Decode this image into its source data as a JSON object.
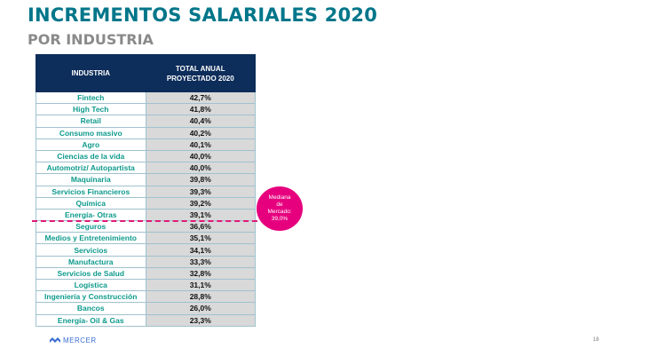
{
  "title": "INCREMENTOS SALARIALES 2020",
  "subtitle": "POR INDUSTRIA",
  "table": {
    "col_industry": "INDUSTRIA",
    "col_total_line1": "TOTAL ANUAL",
    "col_total_line2": "PROYECTADO 2020",
    "rows": [
      {
        "industry": "Fintech",
        "value": "42,7%"
      },
      {
        "industry": "High Tech",
        "value": "41,8%"
      },
      {
        "industry": "Retail",
        "value": "40,4%"
      },
      {
        "industry": "Consumo masivo",
        "value": "40,2%"
      },
      {
        "industry": "Agro",
        "value": "40,1%"
      },
      {
        "industry": "Ciencias de la vida",
        "value": "40,0%"
      },
      {
        "industry": "Automotriz/ Autopartista",
        "value": "40,0%"
      },
      {
        "industry": "Maquinaria",
        "value": "39,8%"
      },
      {
        "industry": "Servicios Financieros",
        "value": "39,3%"
      },
      {
        "industry": "Química",
        "value": "39,2%"
      },
      {
        "industry": "Energía- Otras",
        "value": "39,1%"
      },
      {
        "industry": "Seguros",
        "value": "36,6%"
      },
      {
        "industry": "Medios y Entretenimiento",
        "value": "35,1%"
      },
      {
        "industry": "Servicios",
        "value": "34,1%"
      },
      {
        "industry": "Manufactura",
        "value": "33,3%"
      },
      {
        "industry": "Servicios de Salud",
        "value": "32,8%"
      },
      {
        "industry": "Logística",
        "value": "31,1%"
      },
      {
        "industry": "Ingeniería y Construcción",
        "value": "28,8%"
      },
      {
        "industry": "Bancos",
        "value": "26,0%"
      },
      {
        "industry": "Energía- Oil & Gas",
        "value": "23,3%"
      }
    ]
  },
  "median": {
    "line1": "Mediana",
    "line2": "de",
    "line3": "Mercado:",
    "line4": "39,0%"
  },
  "footer": {
    "logo_text": "MERCER",
    "logo_icon": "mercer-logo-icon",
    "page_number": "18"
  },
  "colors": {
    "title": "#00768a",
    "subtitle": "#8a8a8a",
    "header_bg": "#0d2d5a",
    "industry_text": "#0e9a8c",
    "value_bg": "#d9d9d9",
    "median": "#e6007e"
  }
}
